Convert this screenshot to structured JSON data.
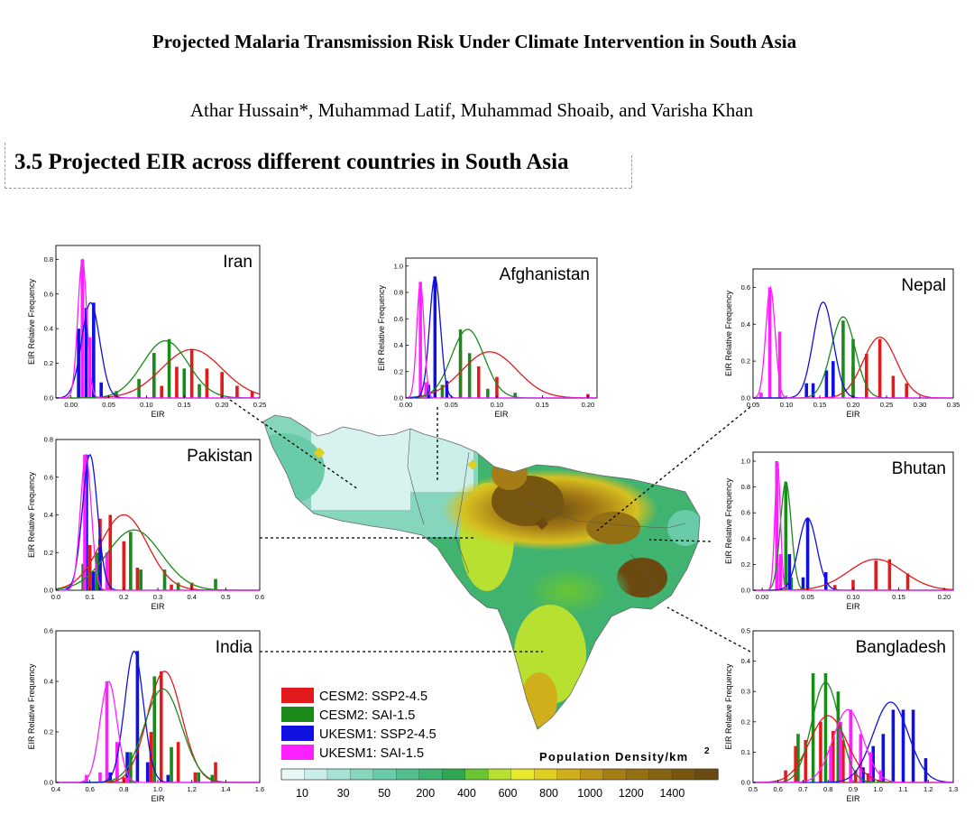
{
  "paper": {
    "title": "Projected Malaria Transmission Risk Under Climate Intervention in South Asia",
    "authors": "Athar Hussain*, Muhammad Latif, Muhammad Shoaib, and Varisha Khan"
  },
  "section": {
    "heading": "3.5 Projected EIR across different countries in South Asia"
  },
  "colors": {
    "CESM2: SSP2-4.5": "#e31a1c",
    "CESM2: SAI-1.5": "#1a8a1a",
    "UKESM1: SSP2-4.5": "#1010e0",
    "UKESM1: SAI-1.5": "#ff20ff"
  },
  "legend": [
    "CESM2: SSP2-4.5",
    "CESM2: SAI-1.5",
    "UKESM1: SSP2-4.5",
    "UKESM1: SAI-1.5"
  ],
  "colorbar": {
    "title": "Population Density/km",
    "superscript": "2",
    "labels": [
      "10",
      "30",
      "50",
      "200",
      "400",
      "600",
      "800",
      "1000",
      "1200",
      "1400"
    ],
    "colors": [
      "#e8f8f6",
      "#c9efe8",
      "#a7e3d4",
      "#86d6bd",
      "#6acba8",
      "#53bf8e",
      "#3fb36f",
      "#2fa650",
      "#6ac534",
      "#b8e030",
      "#e6ea2a",
      "#e0cf22",
      "#cfb01c",
      "#bc9418",
      "#a67c16",
      "#937014",
      "#866412",
      "#775610",
      "#6a4a10"
    ]
  },
  "chart_data": [
    {
      "type": "bar",
      "title": "Iran",
      "xlabel": "EIR",
      "ylabel": "EIR Relative Frequency",
      "xlim": [
        -0.02,
        0.25
      ],
      "ylim": [
        0,
        0.88
      ],
      "xticks": [
        "0.00",
        "0.05",
        "0.10",
        "0.15",
        "0.20",
        "0.25"
      ],
      "xtickvals": [
        0,
        0.05,
        0.1,
        0.15,
        0.2,
        0.25
      ],
      "yticks": [
        "0.0",
        "0.2",
        "0.4",
        "0.6",
        "0.8"
      ],
      "ytickvals": [
        0,
        0.2,
        0.4,
        0.6,
        0.8
      ],
      "series": [
        {
          "name": "CESM2: SSP2-4.5",
          "bars": [
            [
              0.12,
              0.07
            ],
            [
              0.14,
              0.18
            ],
            [
              0.16,
              0.28
            ],
            [
              0.18,
              0.17
            ],
            [
              0.2,
              0.15
            ],
            [
              0.22,
              0.07
            ],
            [
              0.24,
              0.04
            ]
          ],
          "curve": [
            0.16,
            0.04,
            0.28
          ]
        },
        {
          "name": "CESM2: SAI-1.5",
          "bars": [
            [
              0.06,
              0.04
            ],
            [
              0.09,
              0.11
            ],
            [
              0.11,
              0.26
            ],
            [
              0.13,
              0.34
            ],
            [
              0.15,
              0.17
            ],
            [
              0.17,
              0.08
            ]
          ],
          "curve": [
            0.125,
            0.03,
            0.33
          ]
        },
        {
          "name": "UKESM1: SSP2-4.5",
          "bars": [
            [
              0.01,
              0.4
            ],
            [
              0.02,
              0.52
            ],
            [
              0.03,
              0.55
            ],
            [
              0.04,
              0.09
            ]
          ],
          "curve": [
            0.026,
            0.012,
            0.55
          ]
        },
        {
          "name": "UKESM1: SAI-1.5",
          "bars": [
            [
              0.015,
              0.8
            ],
            [
              0.025,
              0.35
            ]
          ],
          "curve": [
            0.015,
            0.006,
            0.8
          ]
        }
      ]
    },
    {
      "type": "bar",
      "title": "Afghanistan",
      "xlabel": "EIR",
      "ylabel": "EIR Relative Frequency",
      "xlim": [
        0,
        0.21
      ],
      "ylim": [
        0,
        1.06
      ],
      "xticks": [
        "0.00",
        "0.05",
        "0.10",
        "0.15",
        "0.20"
      ],
      "xtickvals": [
        0,
        0.05,
        0.1,
        0.15,
        0.2
      ],
      "yticks": [
        "0.0",
        "0.2",
        "0.4",
        "0.6",
        "0.8",
        "1.0"
      ],
      "ytickvals": [
        0,
        0.2,
        0.4,
        0.6,
        0.8,
        1
      ],
      "series": [
        {
          "name": "CESM2: SSP2-4.5",
          "bars": [
            [
              0.06,
              0.36
            ],
            [
              0.08,
              0.24
            ],
            [
              0.1,
              0.16
            ],
            [
              0.2,
              0.03
            ]
          ],
          "curve": [
            0.092,
            0.03,
            0.35
          ]
        },
        {
          "name": "CESM2: SAI-1.5",
          "bars": [
            [
              0.04,
              0.1
            ],
            [
              0.06,
              0.52
            ],
            [
              0.07,
              0.34
            ],
            [
              0.09,
              0.07
            ],
            [
              0.12,
              0.04
            ]
          ],
          "curve": [
            0.068,
            0.018,
            0.52
          ]
        },
        {
          "name": "UKESM1: SSP2-4.5",
          "bars": [
            [
              0.025,
              0.1
            ],
            [
              0.032,
              0.92
            ],
            [
              0.045,
              0.13
            ]
          ],
          "curve": [
            0.032,
            0.006,
            0.92
          ]
        },
        {
          "name": "UKESM1: SAI-1.5",
          "bars": [
            [
              0.016,
              0.88
            ],
            [
              0.022,
              0.12
            ]
          ],
          "curve": [
            0.016,
            0.004,
            0.88
          ]
        }
      ]
    },
    {
      "type": "bar",
      "title": "Nepal",
      "xlabel": "EIR",
      "ylabel": "EIR Relative Frequency",
      "xlim": [
        0.05,
        0.35
      ],
      "ylim": [
        0,
        0.7
      ],
      "xticks": [
        "0.05",
        "0.10",
        "0.15",
        "0.20",
        "0.25",
        "0.30",
        "0.35"
      ],
      "xtickvals": [
        0.05,
        0.1,
        0.15,
        0.2,
        0.25,
        0.3,
        0.35
      ],
      "yticks": [
        "0.0",
        "0.2",
        "0.4",
        "0.6"
      ],
      "ytickvals": [
        0,
        0.2,
        0.4,
        0.6
      ],
      "series": [
        {
          "name": "CESM2: SSP2-4.5",
          "bars": [
            [
              0.2,
              0.17
            ],
            [
              0.22,
              0.24
            ],
            [
              0.24,
              0.32
            ],
            [
              0.26,
              0.12
            ],
            [
              0.28,
              0.08
            ]
          ],
          "curve": [
            0.24,
            0.025,
            0.33
          ]
        },
        {
          "name": "CESM2: SAI-1.5",
          "bars": [
            [
              0.17,
              0.16
            ],
            [
              0.185,
              0.42
            ],
            [
              0.2,
              0.32
            ]
          ],
          "curve": [
            0.185,
            0.018,
            0.44
          ]
        },
        {
          "name": "UKESM1: SSP2-4.5",
          "bars": [
            [
              0.13,
              0.08
            ],
            [
              0.14,
              0.08
            ],
            [
              0.16,
              0.15
            ],
            [
              0.17,
              0.2
            ]
          ],
          "curve": [
            0.155,
            0.015,
            0.52
          ]
        },
        {
          "name": "UKESM1: SAI-1.5",
          "bars": [
            [
              0.062,
              0.03
            ],
            [
              0.075,
              0.6
            ],
            [
              0.09,
              0.36
            ]
          ],
          "curve": [
            0.076,
            0.007,
            0.6
          ]
        }
      ]
    },
    {
      "type": "bar",
      "title": "Pakistan",
      "xlabel": "EIR",
      "ylabel": "EIR Relative Frequency",
      "xlim": [
        0,
        0.6
      ],
      "ylim": [
        0,
        0.8
      ],
      "xticks": [
        "0.0",
        "0.1",
        "0.2",
        "0.3",
        "0.4",
        "0.5",
        "0.6"
      ],
      "xtickvals": [
        0,
        0.1,
        0.2,
        0.3,
        0.4,
        0.5,
        0.6
      ],
      "yticks": [
        "0.0",
        "0.2",
        "0.4",
        "0.6",
        "0.8"
      ],
      "ytickvals": [
        0,
        0.2,
        0.4,
        0.6,
        0.8
      ],
      "series": [
        {
          "name": "CESM2: SSP2-4.5",
          "bars": [
            [
              0.1,
              0.24
            ],
            [
              0.13,
              0.38
            ],
            [
              0.16,
              0.4
            ],
            [
              0.2,
              0.26
            ],
            [
              0.24,
              0.12
            ],
            [
              0.34,
              0.03
            ],
            [
              0.4,
              0.04
            ]
          ],
          "curve": [
            0.2,
            0.07,
            0.4
          ]
        },
        {
          "name": "CESM2: SAI-1.5",
          "bars": [
            [
              0.08,
              0.14
            ],
            [
              0.12,
              0.2
            ],
            [
              0.22,
              0.31
            ],
            [
              0.25,
              0.11
            ],
            [
              0.32,
              0.11
            ],
            [
              0.36,
              0.04
            ],
            [
              0.47,
              0.06
            ]
          ],
          "curve": [
            0.23,
            0.08,
            0.32
          ]
        },
        {
          "name": "UKESM1: SSP2-4.5",
          "bars": [
            [
              0.09,
              0.72
            ],
            [
              0.11,
              0.1
            ],
            [
              0.13,
              0.27
            ]
          ],
          "curve": [
            0.1,
            0.022,
            0.72
          ]
        },
        {
          "name": "UKESM1: SAI-1.5",
          "bars": [
            [
              0.085,
              0.72
            ],
            [
              0.15,
              0.2
            ]
          ],
          "curve": [
            0.088,
            0.016,
            0.72
          ]
        }
      ]
    },
    {
      "type": "bar",
      "title": "Bhutan",
      "xlabel": "EIR",
      "ylabel": "EIR Relative Frequency",
      "xlim": [
        -0.01,
        0.21
      ],
      "ylim": [
        0,
        1.07
      ],
      "xticks": [
        "0.00",
        "0.05",
        "0.10",
        "0.15",
        "0.20"
      ],
      "xtickvals": [
        0,
        0.05,
        0.1,
        0.15,
        0.2
      ],
      "yticks": [
        "0.0",
        "0.2",
        "0.4",
        "0.6",
        "0.8",
        "1.0"
      ],
      "ytickvals": [
        0,
        0.2,
        0.4,
        0.6,
        0.8,
        1
      ],
      "series": [
        {
          "name": "CESM2: SSP2-4.5",
          "bars": [
            [
              0.08,
              0.04
            ],
            [
              0.1,
              0.08
            ],
            [
              0.125,
              0.23
            ],
            [
              0.14,
              0.24
            ],
            [
              0.16,
              0.13
            ]
          ],
          "curve": [
            0.125,
            0.03,
            0.24
          ]
        },
        {
          "name": "CESM2: SAI-1.5",
          "bars": [
            [
              0.02,
              0.24
            ],
            [
              0.026,
              0.84
            ],
            [
              0.032,
              0.1
            ]
          ],
          "curve": [
            0.026,
            0.006,
            0.84
          ]
        },
        {
          "name": "UKESM1: SSP2-4.5",
          "bars": [
            [
              0.03,
              0.28
            ],
            [
              0.045,
              0.1
            ],
            [
              0.05,
              0.56
            ],
            [
              0.07,
              0.14
            ]
          ],
          "curve": [
            0.05,
            0.01,
            0.56
          ]
        },
        {
          "name": "UKESM1: SAI-1.5",
          "bars": [
            [
              0.016,
              1.0
            ],
            [
              0.02,
              0.28
            ]
          ],
          "curve": [
            0.017,
            0.003,
            1.0
          ]
        }
      ]
    },
    {
      "type": "bar",
      "title": "India",
      "xlabel": "EIR",
      "ylabel": "EIR Relative Frequency",
      "xlim": [
        0.4,
        1.6
      ],
      "ylim": [
        0,
        0.6
      ],
      "xticks": [
        "0.4",
        "0.6",
        "0.8",
        "1.0",
        "1.2",
        "1.4",
        "1.6"
      ],
      "xtickvals": [
        0.4,
        0.6,
        0.8,
        1,
        1.2,
        1.4,
        1.6
      ],
      "yticks": [
        "0.0",
        "0.2",
        "0.4",
        "0.6"
      ],
      "ytickvals": [
        0,
        0.2,
        0.4,
        0.6
      ],
      "series": [
        {
          "name": "CESM2: SSP2-4.5",
          "bars": [
            [
              0.8,
              0.02
            ],
            [
              0.96,
              0.2
            ],
            [
              1.02,
              0.44
            ],
            [
              1.12,
              0.16
            ],
            [
              1.22,
              0.04
            ],
            [
              1.34,
              0.08
            ]
          ],
          "curve": [
            1.04,
            0.1,
            0.44
          ]
        },
        {
          "name": "CESM2: SAI-1.5",
          "bars": [
            [
              0.84,
              0.12
            ],
            [
              0.98,
              0.42
            ],
            [
              1.08,
              0.14
            ],
            [
              1.24,
              0.04
            ],
            [
              1.32,
              0.03
            ]
          ],
          "curve": [
            1.03,
            0.11,
            0.37
          ]
        },
        {
          "name": "UKESM1: SSP2-4.5",
          "bars": [
            [
              0.72,
              0.04
            ],
            [
              0.76,
              0.05
            ],
            [
              0.82,
              0.12
            ],
            [
              0.88,
              0.52
            ],
            [
              0.94,
              0.08
            ],
            [
              1.06,
              0.03
            ]
          ],
          "curve": [
            0.86,
            0.055,
            0.52
          ]
        },
        {
          "name": "UKESM1: SAI-1.5",
          "bars": [
            [
              0.58,
              0.03
            ],
            [
              0.66,
              0.04
            ],
            [
              0.7,
              0.4
            ],
            [
              0.76,
              0.16
            ],
            [
              0.82,
              0.02
            ]
          ],
          "curve": [
            0.71,
            0.05,
            0.4
          ]
        }
      ]
    },
    {
      "type": "bar",
      "title": "Bangladesh",
      "xlabel": "EIR",
      "ylabel": "EIR Relative Frequency",
      "xlim": [
        0.5,
        1.3
      ],
      "ylim": [
        0,
        0.5
      ],
      "xticks": [
        "0.5",
        "0.6",
        "0.7",
        "0.8",
        "0.9",
        "1.0",
        "1.1",
        "1.2",
        "1.3"
      ],
      "xtickvals": [
        0.5,
        0.6,
        0.7,
        0.8,
        0.9,
        1,
        1.1,
        1.2,
        1.3
      ],
      "yticks": [
        "0.0",
        "0.1",
        "0.2",
        "0.3",
        "0.4",
        "0.5"
      ],
      "ytickvals": [
        0,
        0.1,
        0.2,
        0.3,
        0.4,
        0.5
      ],
      "series": [
        {
          "name": "CESM2: SSP2-4.5",
          "bars": [
            [
              0.63,
              0.04
            ],
            [
              0.67,
              0.12
            ],
            [
              0.71,
              0.14
            ],
            [
              0.77,
              0.2
            ],
            [
              0.82,
              0.17
            ],
            [
              0.86,
              0.14
            ],
            [
              0.91,
              0.04
            ],
            [
              0.96,
              0.03
            ]
          ],
          "curve": [
            0.8,
            0.075,
            0.22
          ]
        },
        {
          "name": "CESM2: SAI-1.5",
          "bars": [
            [
              0.68,
              0.16
            ],
            [
              0.74,
              0.36
            ],
            [
              0.79,
              0.36
            ],
            [
              0.84,
              0.3
            ],
            [
              0.89,
              0.12
            ],
            [
              0.93,
              0.03
            ]
          ],
          "curve": [
            0.79,
            0.055,
            0.33
          ]
        },
        {
          "name": "UKESM1: SSP2-4.5",
          "bars": [
            [
              0.94,
              0.05
            ],
            [
              0.98,
              0.12
            ],
            [
              1.02,
              0.16
            ],
            [
              1.06,
              0.24
            ],
            [
              1.1,
              0.24
            ],
            [
              1.14,
              0.24
            ],
            [
              1.19,
              0.08
            ]
          ],
          "curve": [
            1.05,
            0.07,
            0.265
          ]
        },
        {
          "name": "UKESM1: SAI-1.5",
          "bars": [
            [
              0.81,
              0.12
            ],
            [
              0.85,
              0.2
            ],
            [
              0.89,
              0.24
            ],
            [
              0.93,
              0.16
            ],
            [
              0.97,
              0.1
            ],
            [
              1.01,
              0.04
            ]
          ],
          "curve": [
            0.88,
            0.06,
            0.24
          ]
        }
      ]
    }
  ]
}
